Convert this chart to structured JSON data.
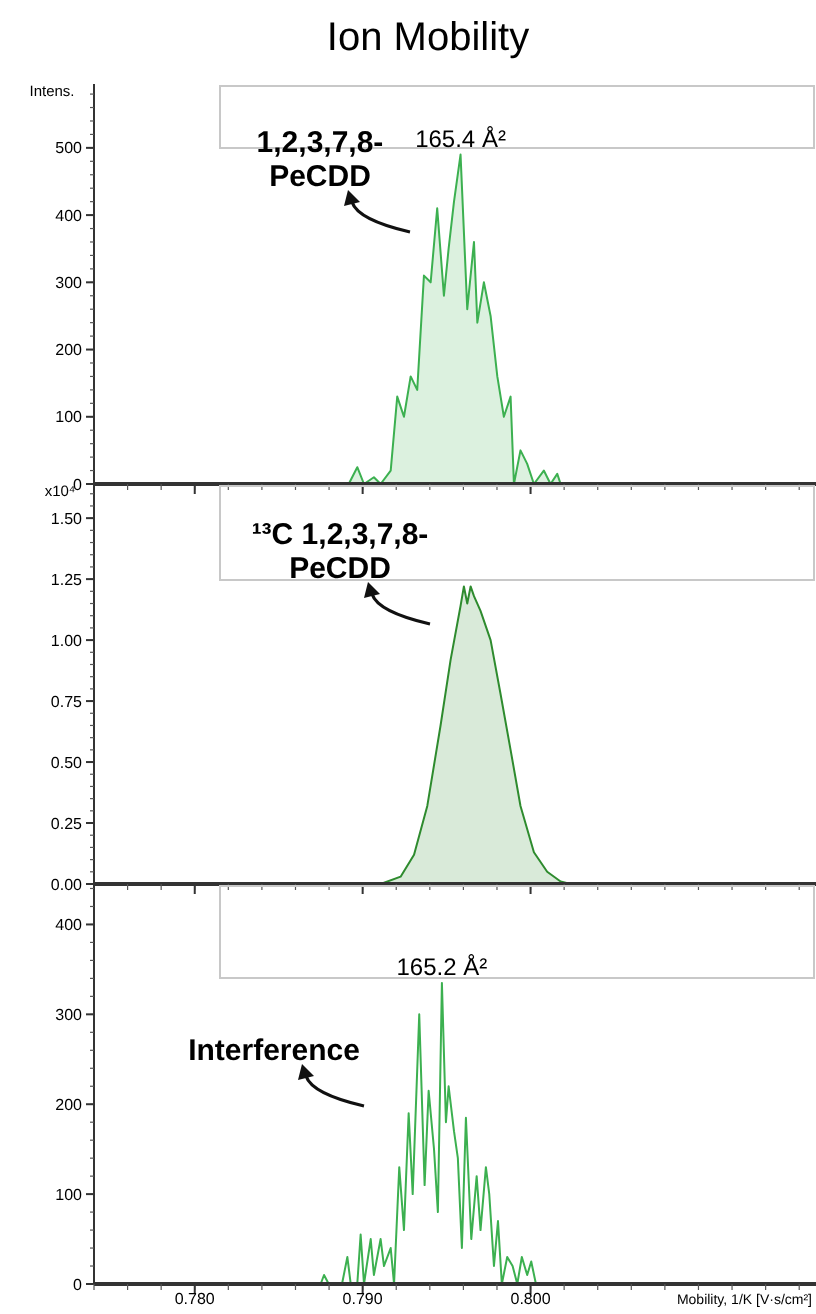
{
  "chart_data": [
    {
      "type": "area",
      "title": "Ion Mobility",
      "ylabel": "Intens.",
      "xlim": [
        0.774,
        0.817
      ],
      "xticks": [
        0.78,
        0.79,
        0.8
      ],
      "ylim": [
        0,
        595
      ],
      "yticks": [
        0,
        100,
        200,
        300,
        400,
        500
      ],
      "tick_labels": "y",
      "annotations": [
        {
          "text": "165.4 Å²",
          "x": 0.79583,
          "y": 490
        },
        "1,2,3,7,8-PeCDD"
      ],
      "series": [
        {
          "color": "#3cb050",
          "x": [
            0.78917,
            0.78968,
            0.79008,
            0.79067,
            0.79107,
            0.79167,
            0.79206,
            0.79246,
            0.79286,
            0.79325,
            0.79365,
            0.79405,
            0.79444,
            0.79484,
            0.79512,
            0.79544,
            0.79583,
            0.79623,
            0.79663,
            0.79683,
            0.79722,
            0.79762,
            0.79802,
            0.79841,
            0.79881,
            0.79901,
            0.7994,
            0.7998,
            0.8002,
            0.80079,
            0.80119,
            0.80159,
            0.80179
          ],
          "values": [
            0,
            25,
            0,
            10,
            0,
            20,
            130,
            100,
            160,
            140,
            310,
            300,
            410,
            280,
            350,
            420,
            490,
            260,
            360,
            240,
            300,
            250,
            160,
            100,
            130,
            0,
            50,
            30,
            0,
            20,
            0,
            15,
            0
          ]
        }
      ]
    },
    {
      "type": "area",
      "ylabel": "x10⁴",
      "xlim": [
        0.774,
        0.817
      ],
      "xticks": [
        0.78,
        0.79,
        0.8
      ],
      "ylim": [
        0,
        1.64
      ],
      "yticks": [
        {
          "value": 0,
          "label": "0.00"
        },
        {
          "value": 0.25,
          "label": "0.25"
        },
        {
          "value": 0.5,
          "label": "0.50"
        },
        {
          "value": 0.75,
          "label": "0.75"
        },
        {
          "value": 1,
          "label": "1.00"
        },
        {
          "value": 1.25,
          "label": "1.25"
        },
        {
          "value": 1.5,
          "label": "1.50"
        }
      ],
      "tick_labels": "y",
      "annotations": [
        "¹³C 1,2,3,7,8-PeCDD"
      ],
      "series": [
        {
          "color": "#2e8b2e",
          "x": [
            0.79107,
            0.79226,
            0.79306,
            0.79385,
            0.79464,
            0.79524,
            0.79583,
            0.79603,
            0.79623,
            0.79643,
            0.79663,
            0.79702,
            0.79762,
            0.79821,
            0.79881,
            0.7994,
            0.8002,
            0.80099,
            0.80179,
            0.80238
          ],
          "values": [
            0,
            0.03,
            0.12,
            0.32,
            0.65,
            0.92,
            1.14,
            1.22,
            1.15,
            1.22,
            1.18,
            1.12,
            1,
            0.78,
            0.55,
            0.32,
            0.13,
            0.05,
            0.01,
            0
          ]
        }
      ]
    },
    {
      "type": "line",
      "xlabel": "Mobility, 1/K [V·s/cm²]",
      "xlim": [
        0.774,
        0.817
      ],
      "xticks": [
        {
          "value": 0.78,
          "label": "0.780"
        },
        {
          "value": 0.79,
          "label": "0.790"
        },
        {
          "value": 0.8,
          "label": "0.800"
        }
      ],
      "ylim": [
        0,
        445
      ],
      "yticks": [
        0,
        100,
        200,
        300,
        400
      ],
      "annotations": [
        {
          "text": "165.2 Å²",
          "x": 0.79472,
          "y": 335
        },
        "Interference"
      ],
      "series": [
        {
          "color": "#3cb050",
          "x": [
            0.7875,
            0.7877,
            0.78798,
            0.78877,
            0.78909,
            0.78929,
            0.78968,
            0.78988,
            0.79008,
            0.79048,
            0.79067,
            0.79107,
            0.79127,
            0.79167,
            0.79187,
            0.79218,
            0.79246,
            0.79274,
            0.79298,
            0.79337,
            0.79369,
            0.79393,
            0.79425,
            0.79448,
            0.79472,
            0.79496,
            0.79512,
            0.79544,
            0.79567,
            0.79591,
            0.79615,
            0.79647,
            0.79679,
            0.79702,
            0.79734,
            0.79754,
            0.79782,
            0.79806,
            0.79829,
            0.79861,
            0.79893,
            0.79921,
            0.79948,
            0.7998,
            0.80004,
            0.80032
          ],
          "values": [
            0,
            10,
            0,
            0,
            30,
            0,
            0,
            55,
            0,
            50,
            10,
            50,
            20,
            40,
            0,
            130,
            60,
            190,
            100,
            300,
            110,
            215,
            150,
            80,
            335,
            180,
            220,
            170,
            140,
            40,
            185,
            50,
            120,
            60,
            130,
            100,
            20,
            70,
            0,
            30,
            20,
            0,
            30,
            10,
            25,
            0
          ]
        }
      ]
    }
  ]
}
